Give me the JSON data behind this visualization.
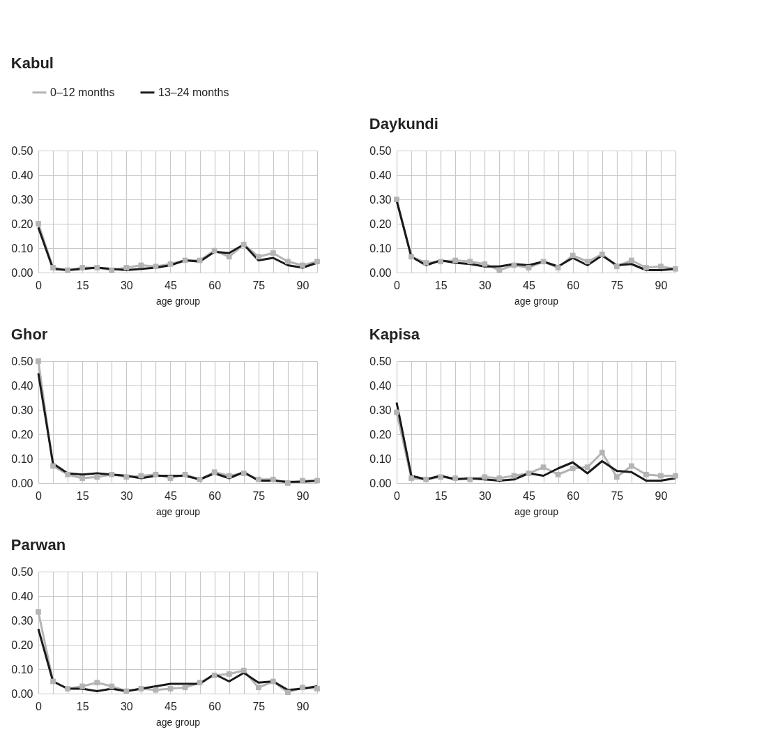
{
  "chart_data": [
    {
      "type": "line",
      "title": "Kabul",
      "xlabel": "age group",
      "x": [
        0,
        5,
        10,
        15,
        20,
        25,
        30,
        35,
        40,
        45,
        50,
        55,
        60,
        65,
        70,
        75,
        80,
        85,
        90,
        95
      ],
      "xlim": [
        0,
        95
      ],
      "xticks": [
        0,
        {
          "value": 5,
          "label": null
        },
        {
          "value": 10,
          "label": null
        },
        15,
        {
          "value": 20,
          "label": null
        },
        {
          "value": 25,
          "label": null
        },
        30,
        {
          "value": 35,
          "label": null
        },
        {
          "value": 40,
          "label": null
        },
        45,
        {
          "value": 50,
          "label": null
        },
        {
          "value": 55,
          "label": null
        },
        60,
        {
          "value": 65,
          "label": null
        },
        {
          "value": 70,
          "label": null
        },
        75,
        {
          "value": 80,
          "label": null
        },
        {
          "value": 85,
          "label": null
        },
        90,
        {
          "value": 95,
          "label": null
        }
      ],
      "ylim": [
        0,
        0.5
      ],
      "yticks": [
        {
          "value": 0,
          "label": "0.00"
        },
        {
          "value": 0.1,
          "label": "0.10"
        },
        {
          "value": 0.2,
          "label": "0.20"
        },
        {
          "value": 0.3,
          "label": "0.30"
        },
        {
          "value": 0.4,
          "label": "0.40"
        },
        {
          "value": 0.5,
          "label": "0.50"
        }
      ],
      "grid": true,
      "legend": "top left",
      "series": [
        {
          "name": "0–12 months",
          "color": "#b4b4b4",
          "marker": "square",
          "values": [
            0.2,
            0.02,
            0.01,
            0.02,
            0.02,
            0.01,
            0.02,
            0.03,
            0.025,
            0.035,
            0.05,
            0.05,
            0.09,
            0.065,
            0.115,
            0.065,
            0.08,
            0.045,
            0.03,
            0.045
          ]
        },
        {
          "name": "13–24 months",
          "color": "#1a1a1a",
          "marker": "none",
          "values": [
            0.185,
            0.015,
            0.01,
            0.015,
            0.02,
            0.015,
            0.01,
            0.015,
            0.02,
            0.03,
            0.05,
            0.045,
            0.085,
            0.08,
            0.115,
            0.05,
            0.06,
            0.03,
            0.02,
            0.04
          ]
        }
      ]
    },
    {
      "type": "line",
      "title": "Daykundi",
      "xlabel": "age group",
      "x": [
        0,
        5,
        10,
        15,
        20,
        25,
        30,
        35,
        40,
        45,
        50,
        55,
        60,
        65,
        70,
        75,
        80,
        85,
        90,
        95
      ],
      "xlim": [
        0,
        95
      ],
      "xticks": [
        0,
        {
          "value": 5,
          "label": null
        },
        {
          "value": 10,
          "label": null
        },
        15,
        {
          "value": 20,
          "label": null
        },
        {
          "value": 25,
          "label": null
        },
        30,
        {
          "value": 35,
          "label": null
        },
        {
          "value": 40,
          "label": null
        },
        45,
        {
          "value": 50,
          "label": null
        },
        {
          "value": 55,
          "label": null
        },
        60,
        {
          "value": 65,
          "label": null
        },
        {
          "value": 70,
          "label": null
        },
        75,
        {
          "value": 80,
          "label": null
        },
        {
          "value": 85,
          "label": null
        },
        90,
        {
          "value": 95,
          "label": null
        }
      ],
      "ylim": [
        0,
        0.5
      ],
      "yticks": [
        {
          "value": 0,
          "label": "0.00"
        },
        {
          "value": 0.1,
          "label": "0.10"
        },
        {
          "value": 0.2,
          "label": "0.20"
        },
        {
          "value": 0.3,
          "label": "0.30"
        },
        {
          "value": 0.4,
          "label": "0.40"
        },
        {
          "value": 0.5,
          "label": "0.50"
        }
      ],
      "grid": true,
      "series": [
        {
          "color": "#b4b4b4",
          "marker": "square",
          "values": [
            0.3,
            0.065,
            0.04,
            0.045,
            0.05,
            0.045,
            0.035,
            0.01,
            0.03,
            0.02,
            0.045,
            0.02,
            0.07,
            0.045,
            0.075,
            0.025,
            0.05,
            0.02,
            0.025,
            0.015
          ]
        },
        {
          "color": "#1a1a1a",
          "marker": "none",
          "values": [
            0.295,
            0.065,
            0.03,
            0.05,
            0.04,
            0.035,
            0.025,
            0.025,
            0.035,
            0.03,
            0.045,
            0.025,
            0.06,
            0.03,
            0.07,
            0.03,
            0.035,
            0.01,
            0.01,
            0.015
          ]
        }
      ]
    },
    {
      "type": "line",
      "title": "Ghor",
      "xlabel": "age group",
      "x": [
        0,
        5,
        10,
        15,
        20,
        25,
        30,
        35,
        40,
        45,
        50,
        55,
        60,
        65,
        70,
        75,
        80,
        85,
        90,
        95
      ],
      "xlim": [
        0,
        95
      ],
      "xticks": [
        0,
        {
          "value": 5,
          "label": null
        },
        {
          "value": 10,
          "label": null
        },
        15,
        {
          "value": 20,
          "label": null
        },
        {
          "value": 25,
          "label": null
        },
        30,
        {
          "value": 35,
          "label": null
        },
        {
          "value": 40,
          "label": null
        },
        45,
        {
          "value": 50,
          "label": null
        },
        {
          "value": 55,
          "label": null
        },
        60,
        {
          "value": 65,
          "label": null
        },
        {
          "value": 70,
          "label": null
        },
        75,
        {
          "value": 80,
          "label": null
        },
        {
          "value": 85,
          "label": null
        },
        90,
        {
          "value": 95,
          "label": null
        }
      ],
      "ylim": [
        0,
        0.5
      ],
      "yticks": [
        {
          "value": 0,
          "label": "0.00"
        },
        {
          "value": 0.1,
          "label": "0.10"
        },
        {
          "value": 0.2,
          "label": "0.20"
        },
        {
          "value": 0.3,
          "label": "0.30"
        },
        {
          "value": 0.4,
          "label": "0.40"
        },
        {
          "value": 0.5,
          "label": "0.50"
        }
      ],
      "grid": true,
      "series": [
        {
          "color": "#b4b4b4",
          "marker": "square",
          "values": [
            0.5,
            0.07,
            0.035,
            0.02,
            0.025,
            0.035,
            0.025,
            0.03,
            0.035,
            0.02,
            0.035,
            0.015,
            0.045,
            0.03,
            0.04,
            0.015,
            0.015,
            0.0,
            0.01,
            0.01
          ]
        },
        {
          "color": "#1a1a1a",
          "marker": "none",
          "values": [
            0.45,
            0.08,
            0.04,
            0.035,
            0.04,
            0.035,
            0.03,
            0.02,
            0.03,
            0.03,
            0.03,
            0.015,
            0.04,
            0.02,
            0.045,
            0.01,
            0.01,
            0.005,
            0.005,
            0.01
          ]
        }
      ]
    },
    {
      "type": "line",
      "title": "Kapisa",
      "xlabel": "age group",
      "x": [
        0,
        5,
        10,
        15,
        20,
        25,
        30,
        35,
        40,
        45,
        50,
        55,
        60,
        65,
        70,
        75,
        80,
        85,
        90,
        95
      ],
      "xlim": [
        0,
        95
      ],
      "xticks": [
        0,
        {
          "value": 5,
          "label": null
        },
        {
          "value": 10,
          "label": null
        },
        15,
        {
          "value": 20,
          "label": null
        },
        {
          "value": 25,
          "label": null
        },
        30,
        {
          "value": 35,
          "label": null
        },
        {
          "value": 40,
          "label": null
        },
        45,
        {
          "value": 50,
          "label": null
        },
        {
          "value": 55,
          "label": null
        },
        60,
        {
          "value": 65,
          "label": null
        },
        {
          "value": 70,
          "label": null
        },
        75,
        {
          "value": 80,
          "label": null
        },
        {
          "value": 85,
          "label": null
        },
        90,
        {
          "value": 95,
          "label": null
        }
      ],
      "ylim": [
        0,
        0.5
      ],
      "yticks": [
        {
          "value": 0,
          "label": "0.00"
        },
        {
          "value": 0.1,
          "label": "0.10"
        },
        {
          "value": 0.2,
          "label": "0.20"
        },
        {
          "value": 0.3,
          "label": "0.30"
        },
        {
          "value": 0.4,
          "label": "0.40"
        },
        {
          "value": 0.5,
          "label": "0.50"
        }
      ],
      "grid": true,
      "series": [
        {
          "color": "#b4b4b4",
          "marker": "square",
          "values": [
            0.29,
            0.02,
            0.015,
            0.025,
            0.02,
            0.015,
            0.025,
            0.02,
            0.03,
            0.04,
            0.065,
            0.035,
            0.06,
            0.065,
            0.125,
            0.025,
            0.07,
            0.035,
            0.03,
            0.03
          ]
        },
        {
          "color": "#1a1a1a",
          "marker": "none",
          "values": [
            0.33,
            0.03,
            0.015,
            0.03,
            0.015,
            0.02,
            0.015,
            0.01,
            0.015,
            0.04,
            0.03,
            0.06,
            0.085,
            0.04,
            0.09,
            0.05,
            0.045,
            0.01,
            0.01,
            0.02
          ]
        }
      ]
    },
    {
      "type": "line",
      "title": "Parwan",
      "xlabel": "age group",
      "x": [
        0,
        5,
        10,
        15,
        20,
        25,
        30,
        35,
        40,
        45,
        50,
        55,
        60,
        65,
        70,
        75,
        80,
        85,
        90,
        95
      ],
      "xlim": [
        0,
        95
      ],
      "xticks": [
        0,
        {
          "value": 5,
          "label": null
        },
        {
          "value": 10,
          "label": null
        },
        15,
        {
          "value": 20,
          "label": null
        },
        {
          "value": 25,
          "label": null
        },
        30,
        {
          "value": 35,
          "label": null
        },
        {
          "value": 40,
          "label": null
        },
        45,
        {
          "value": 50,
          "label": null
        },
        {
          "value": 55,
          "label": null
        },
        60,
        {
          "value": 65,
          "label": null
        },
        {
          "value": 70,
          "label": null
        },
        75,
        {
          "value": 80,
          "label": null
        },
        {
          "value": 85,
          "label": null
        },
        90,
        {
          "value": 95,
          "label": null
        }
      ],
      "ylim": [
        0,
        0.5
      ],
      "yticks": [
        {
          "value": 0,
          "label": "0.00"
        },
        {
          "value": 0.1,
          "label": "0.10"
        },
        {
          "value": 0.2,
          "label": "0.20"
        },
        {
          "value": 0.3,
          "label": "0.30"
        },
        {
          "value": 0.4,
          "label": "0.40"
        },
        {
          "value": 0.5,
          "label": "0.50"
        }
      ],
      "grid": true,
      "series": [
        {
          "color": "#b4b4b4",
          "marker": "square",
          "values": [
            0.335,
            0.05,
            0.02,
            0.03,
            0.045,
            0.03,
            0.01,
            0.02,
            0.015,
            0.02,
            0.025,
            0.045,
            0.075,
            0.08,
            0.095,
            0.025,
            0.05,
            0.005,
            0.025,
            0.02
          ]
        },
        {
          "color": "#1a1a1a",
          "marker": "none",
          "values": [
            0.265,
            0.05,
            0.02,
            0.02,
            0.01,
            0.02,
            0.01,
            0.02,
            0.03,
            0.04,
            0.04,
            0.04,
            0.08,
            0.05,
            0.085,
            0.045,
            0.05,
            0.015,
            0.02,
            0.03
          ]
        }
      ]
    }
  ]
}
